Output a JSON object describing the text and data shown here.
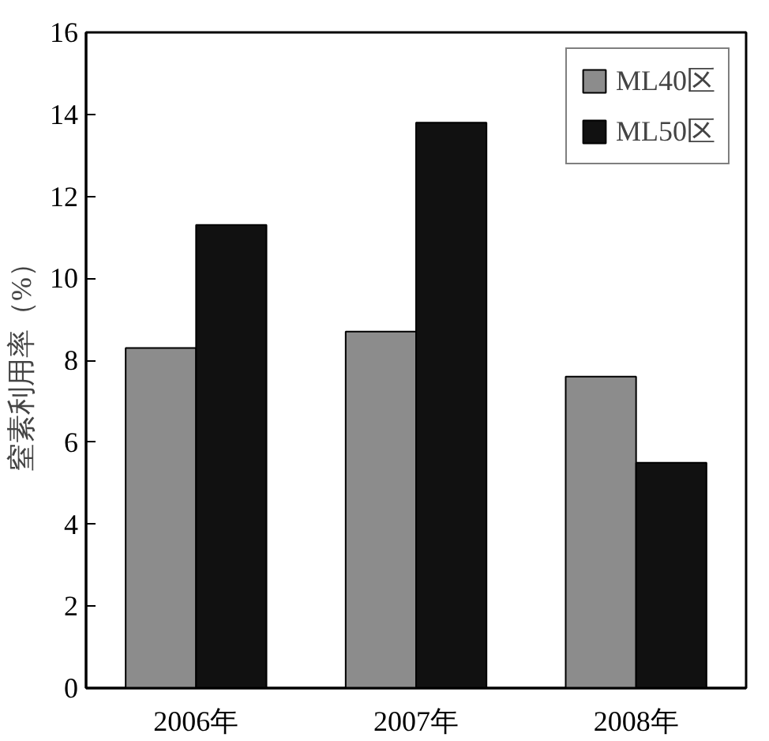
{
  "chart_data": {
    "type": "bar",
    "ylabel": "窒素利用率（%）",
    "categories": [
      "2006年",
      "2007年",
      "2008年"
    ],
    "series": [
      {
        "name": "ML40区",
        "color": "#8c8c8c",
        "values": [
          8.3,
          8.7,
          7.6
        ]
      },
      {
        "name": "ML50区",
        "color": "#111111",
        "values": [
          11.3,
          13.8,
          5.5
        ]
      }
    ],
    "ylim": [
      0,
      16
    ],
    "yticks": [
      0,
      2,
      4,
      6,
      8,
      10,
      12,
      14,
      16
    ],
    "grid": false,
    "legend": "top right"
  }
}
